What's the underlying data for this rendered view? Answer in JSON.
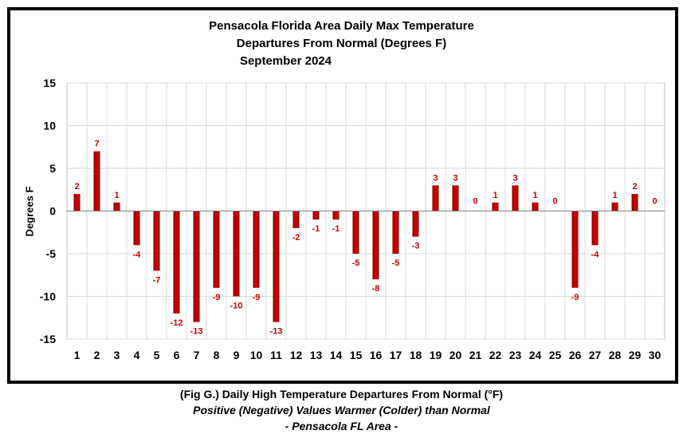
{
  "chart_data": {
    "type": "bar",
    "title": [
      "Pensacola Florida Area Daily Max Temperature",
      "Departures From Normal (Degrees F)",
      "September 2024"
    ],
    "xlabel": "",
    "ylabel": "Degrees F",
    "ylim": [
      -15,
      15
    ],
    "yticks": [
      15,
      10,
      5,
      0,
      -5,
      -10,
      -15
    ],
    "grid": true,
    "legend": "none",
    "categories": [
      "1",
      "2",
      "3",
      "4",
      "5",
      "6",
      "7",
      "8",
      "9",
      "10",
      "11",
      "12",
      "13",
      "14",
      "15",
      "16",
      "17",
      "18",
      "19",
      "20",
      "21",
      "22",
      "23",
      "24",
      "25",
      "26",
      "27",
      "28",
      "29",
      "30"
    ],
    "values": [
      2,
      7,
      1,
      -4,
      -7,
      -12,
      -13,
      -9,
      -10,
      -9,
      -13,
      -2,
      -1,
      -1,
      -5,
      -8,
      -5,
      -3,
      3,
      3,
      0,
      1,
      3,
      1,
      0,
      -9,
      -4,
      1,
      2,
      0
    ],
    "colors": {
      "bar": "#cc0000",
      "bar_dark": "#7a0000",
      "label": "#cc0000",
      "grid": "#d9d9d9"
    }
  },
  "captions": {
    "line1": "(Fig G.) Daily High Temperature Departures From Normal (°F)",
    "line2": "Positive (Negative) Values Warmer (Colder) than Normal",
    "line3": "- Pensacola FL Area -"
  }
}
